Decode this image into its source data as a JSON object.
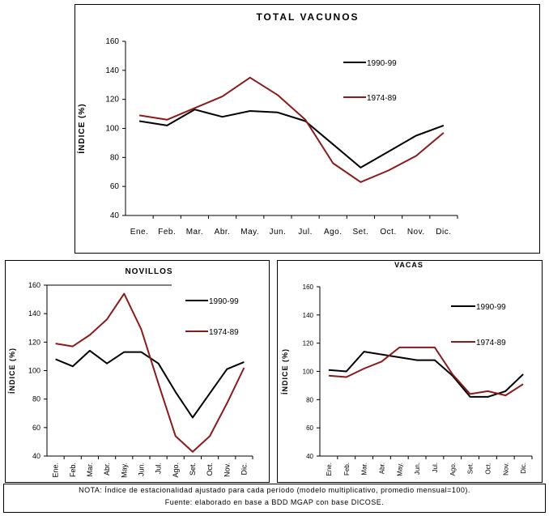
{
  "chart_data": [
    {
      "type": "line",
      "title": "TOTAL VACUNOS",
      "xlabel": "",
      "ylabel": "ÍNDICE (%)",
      "categories": [
        "Ene.",
        "Feb.",
        "Mar.",
        "Abr.",
        "May.",
        "Jun.",
        "Jul.",
        "Ago.",
        "Set.",
        "Oct.",
        "Nov.",
        "Dic."
      ],
      "ylim": [
        40,
        160
      ],
      "yticks": [
        "40",
        "60",
        "80",
        "100",
        "120",
        "140",
        "160"
      ],
      "grid": false,
      "legend": "top-right",
      "series": [
        {
          "name": "1990-99",
          "color": "#000000",
          "values": [
            105,
            102,
            113,
            108,
            112,
            111,
            105,
            89,
            73,
            84,
            95,
            102
          ]
        },
        {
          "name": "1974-89",
          "color": "#8b1a1a",
          "values": [
            109,
            106,
            114,
            122,
            135,
            123,
            106,
            76,
            63,
            71,
            81,
            97
          ]
        }
      ]
    },
    {
      "type": "line",
      "title": "NOVILLOS",
      "xlabel": "",
      "ylabel": "ÍNDICE (%)",
      "categories": [
        "Ene.",
        "Feb.",
        "Mar.",
        "Abr.",
        "May.",
        "Jun.",
        "Jul.",
        "Ago.",
        "Set.",
        "Oct.",
        "Nov.",
        "Dic."
      ],
      "ylim": [
        40,
        160
      ],
      "yticks": [
        "40",
        "60",
        "80",
        "100",
        "120",
        "140",
        "160"
      ],
      "grid": false,
      "legend": "top-right",
      "series": [
        {
          "name": "1990-99",
          "color": "#000000",
          "values": [
            108,
            103,
            114,
            105,
            113,
            113,
            105,
            85,
            67,
            84,
            101,
            106
          ]
        },
        {
          "name": "1974-89",
          "color": "#8b1a1a",
          "values": [
            119,
            117,
            125,
            136,
            154,
            129,
            91,
            54,
            43,
            54,
            77,
            102
          ]
        }
      ]
    },
    {
      "type": "line",
      "title": "VACAS",
      "xlabel": "",
      "ylabel": "ÍNDICE (%)",
      "categories": [
        "Ene.",
        "Feb.",
        "Mar.",
        "Abr.",
        "May.",
        "Jun.",
        "Jul.",
        "Ago.",
        "Set.",
        "Oct.",
        "Nov.",
        "Dic."
      ],
      "ylim": [
        40,
        160
      ],
      "yticks": [
        "40",
        "60",
        "80",
        "100",
        "120",
        "140",
        "160"
      ],
      "grid": false,
      "legend": "top-right",
      "series": [
        {
          "name": "1990-99",
          "color": "#000000",
          "values": [
            101,
            100,
            114,
            112,
            110,
            108,
            108,
            97,
            82,
            82,
            86,
            98
          ]
        },
        {
          "name": "1974-89",
          "color": "#8b1a1a",
          "values": [
            97,
            96,
            102,
            107,
            117,
            117,
            117,
            98,
            84,
            86,
            83,
            91
          ]
        }
      ]
    }
  ],
  "note": {
    "line1": "NOTA: Índice de estacionalidad ajustado para cada período (modelo multiplicativo, promedio mensual=100).",
    "line2": "Fuente: elaborado en base a BDD MGAP con base DICOSE."
  }
}
